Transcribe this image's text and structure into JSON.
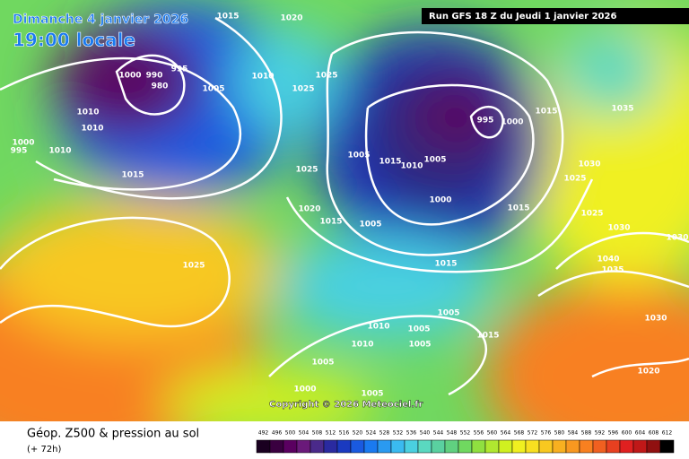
{
  "header": {
    "date": "Dimanche 4 janvier 2026",
    "time": "19:00 locale",
    "run": "Run GFS 18 Z du Jeudi 1 janvier 2026"
  },
  "footer": {
    "title": "Géop. Z500 & pression au sol",
    "lead": "(+ 72h)",
    "copyright": "Copyright © 2026 Meteociel.fr"
  },
  "colorbar": {
    "labels": [
      492,
      496,
      500,
      504,
      508,
      512,
      516,
      520,
      524,
      528,
      532,
      536,
      540,
      544,
      548,
      552,
      556,
      560,
      564,
      568,
      572,
      576,
      580,
      584,
      588,
      592,
      596,
      600,
      604,
      608,
      612
    ],
    "colors": [
      "#1a0020",
      "#3a0040",
      "#5a0060",
      "#6a1a7a",
      "#4a2a8a",
      "#2a2aa0",
      "#1a3ac0",
      "#1a5ae0",
      "#1a7af0",
      "#2a9af0",
      "#3abaf0",
      "#4ad0e0",
      "#5ad8c0",
      "#5ad0a0",
      "#60d080",
      "#70d860",
      "#90e040",
      "#b0e830",
      "#d0f020",
      "#f0f020",
      "#f8e020",
      "#f8c820",
      "#f8b020",
      "#f89820",
      "#f88020",
      "#f06020",
      "#e84020",
      "#e02020",
      "#c01818",
      "#901010",
      "#000000"
    ]
  },
  "isobars": {
    "labels": [
      1015,
      1020,
      995,
      1000,
      990,
      980,
      1005,
      1010,
      1010,
      1000,
      995,
      1010,
      1015,
      1010,
      1025,
      1025,
      1015,
      1035,
      995,
      1000,
      1005,
      1015,
      1010,
      1005,
      1030,
      1025,
      1025,
      1020,
      1015,
      1005,
      1000,
      1015,
      1025,
      1030,
      1030,
      1040,
      1035,
      1015,
      1025,
      1005,
      1010,
      1005,
      1015,
      1030,
      1010,
      1005,
      1005,
      1020,
      1000,
      1005
    ]
  }
}
